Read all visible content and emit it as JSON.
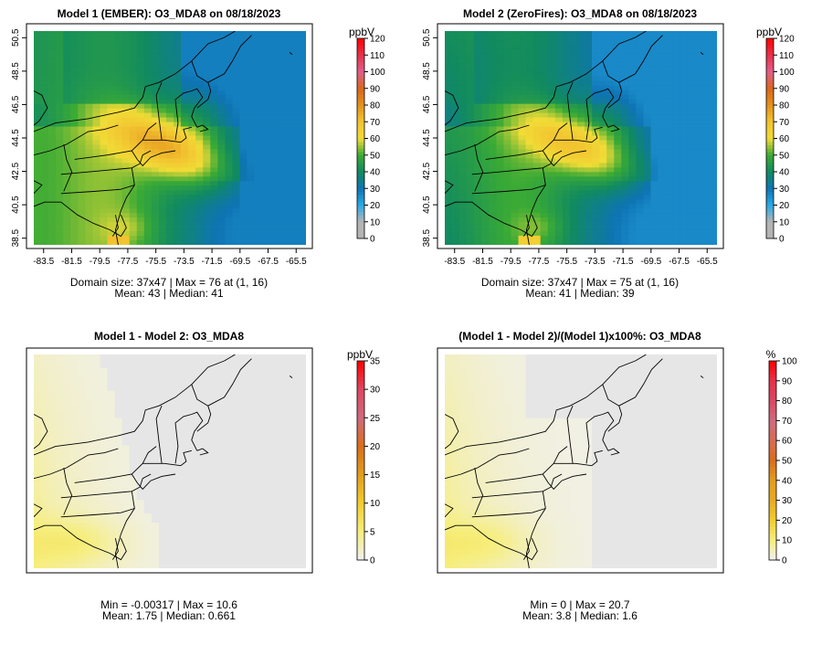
{
  "chart_data": [
    {
      "type": "heatmap",
      "title": "Model 1 (EMBER): O3_MDA8 on 08/18/2023",
      "field": "ozone",
      "xticks": [
        "-83.5",
        "-81.5",
        "-79.5",
        "-77.5",
        "-75.5",
        "-73.5",
        "-71.5",
        "-69.5",
        "-67.5",
        "-65.5"
      ],
      "yticks": [
        "38.5",
        "40.5",
        "42.5",
        "44.5",
        "46.5",
        "48.5",
        "50.5"
      ],
      "xlim": [
        -84.2,
        -64.8
      ],
      "ylim": [
        38.1,
        50.9
      ],
      "colorbar": {
        "unit": "ppbV",
        "min": 0,
        "max": 120,
        "ticks": [
          "0",
          "10",
          "20",
          "30",
          "40",
          "50",
          "60",
          "70",
          "80",
          "90",
          "100",
          "110",
          "120"
        ]
      },
      "summary": {
        "domain_size": "37x47",
        "max": 76,
        "max_location": "(1, 16)",
        "mean": 43,
        "median": 41
      },
      "stats_lines": [
        "Domain size: 37x47 | Max = 76 at (1, 16)",
        "Mean: 43 |  Median: 41"
      ]
    },
    {
      "type": "heatmap",
      "title": "Model 2 (ZeroFires): O3_MDA8 on 08/18/2023",
      "field": "ozone",
      "xticks": [
        "-83.5",
        "-81.5",
        "-79.5",
        "-77.5",
        "-75.5",
        "-73.5",
        "-71.5",
        "-69.5",
        "-67.5",
        "-65.5"
      ],
      "yticks": [
        "38.5",
        "40.5",
        "42.5",
        "44.5",
        "46.5",
        "48.5",
        "50.5"
      ],
      "xlim": [
        -84.2,
        -64.8
      ],
      "ylim": [
        38.1,
        50.9
      ],
      "colorbar": {
        "unit": "ppbV",
        "min": 0,
        "max": 120,
        "ticks": [
          "0",
          "10",
          "20",
          "30",
          "40",
          "50",
          "60",
          "70",
          "80",
          "90",
          "100",
          "110",
          "120"
        ]
      },
      "summary": {
        "domain_size": "37x47",
        "max": 75,
        "max_location": "(1, 16)",
        "mean": 41,
        "median": 39
      },
      "stats_lines": [
        "Domain size: 37x47 | Max = 75 at (1, 16)",
        "Mean: 41 |  Median: 39"
      ]
    },
    {
      "type": "heatmap",
      "title": "Model 1 - Model 2: O3_MDA8",
      "field": "diff",
      "xticks": [],
      "yticks": [],
      "colorbar": {
        "unit": "ppbV",
        "min": 0,
        "max": 35,
        "ticks": [
          "0",
          "5",
          "10",
          "15",
          "20",
          "25",
          "30",
          "35"
        ]
      },
      "summary": {
        "min": -0.00317,
        "max": 10.6,
        "mean": 1.75,
        "median": 0.661
      },
      "stats_lines": [
        "Min = -0.00317 | Max = 10.6",
        "Mean: 1.75 |  Median: 0.661"
      ]
    },
    {
      "type": "heatmap",
      "title": "(Model 1 - Model 2)/(Model 1)x100%: O3_MDA8",
      "field": "pct",
      "xticks": [],
      "yticks": [],
      "colorbar": {
        "unit": "%",
        "min": 0,
        "max": 100,
        "ticks": [
          "0",
          "10",
          "20",
          "30",
          "40",
          "50",
          "60",
          "70",
          "80",
          "90",
          "100"
        ]
      },
      "summary": {
        "min": 0,
        "max": 20.7,
        "mean": 3.8,
        "median": 1.6
      },
      "stats_lines": [
        "Min = 0 | Max = 20.7",
        "Mean: 3.8 |  Median: 1.6"
      ]
    }
  ],
  "colors": {
    "ozone_stops": [
      "#b4b4b4",
      "#b4b4b4",
      "#2aa9e6",
      "#0e74b4",
      "#118a60",
      "#3aaa35",
      "#f1dc36",
      "#f2c230",
      "#e3921c",
      "#d9661c",
      "#e05f8a",
      "#e8304a",
      "#ff0000"
    ],
    "diff_stops": [
      "#f0f0f0",
      "#f6ee7d",
      "#f2cd2c",
      "#e39d1d",
      "#da6e1a",
      "#d16a7e",
      "#dd4660",
      "#ff0000"
    ],
    "pct_stops": [
      "#f0f0f0",
      "#f6ee7d",
      "#f2cd2c",
      "#e8aa20",
      "#e39d1d",
      "#da6e1a",
      "#d86b52",
      "#d16a7e",
      "#dd4660",
      "#e8304a",
      "#ff0000"
    ],
    "map_lines": "#000000",
    "missing": "#e6e6e6"
  }
}
